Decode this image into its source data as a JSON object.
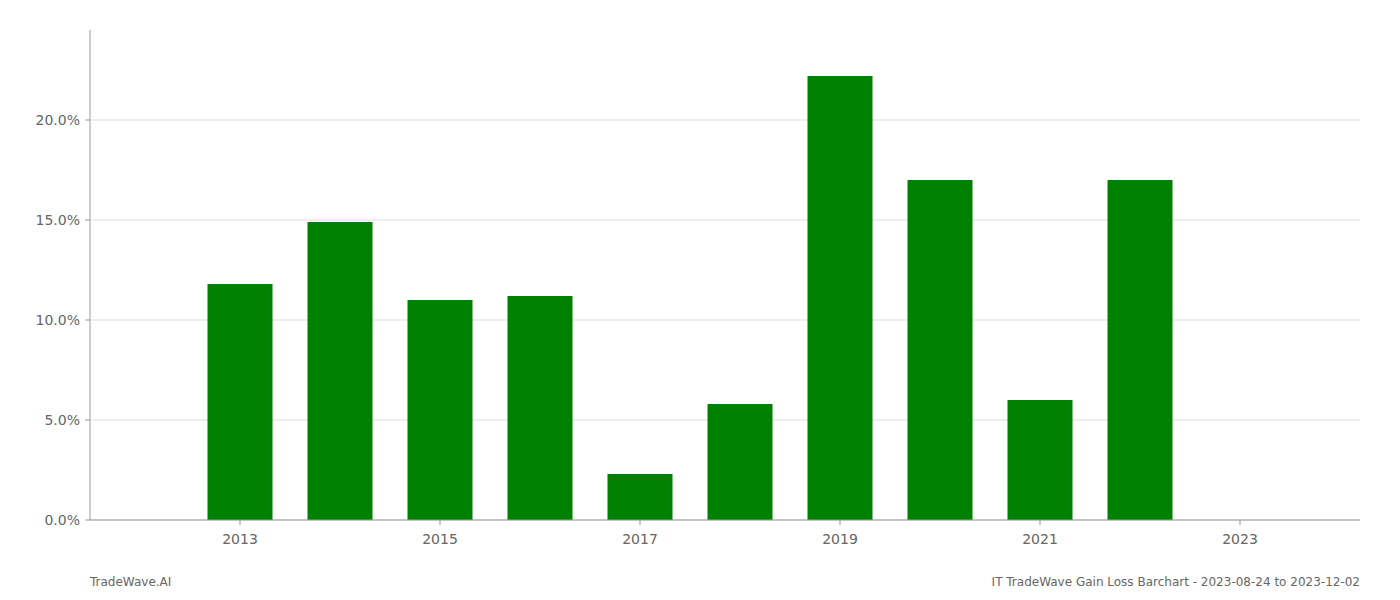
{
  "chart_data": {
    "type": "bar",
    "x": [
      2013,
      2014,
      2015,
      2016,
      2017,
      2018,
      2019,
      2020,
      2021,
      2022
    ],
    "values": [
      0.118,
      0.149,
      0.11,
      0.112,
      0.023,
      0.058,
      0.222,
      0.17,
      0.06,
      0.17
    ],
    "color": "#008000",
    "xlim": [
      2011.5,
      2024.2
    ],
    "xticks": [
      2013,
      2015,
      2017,
      2019,
      2021,
      2023
    ],
    "ylim": [
      0,
      0.245
    ],
    "yticks": [
      {
        "value": 0.0,
        "label": "0.0%"
      },
      {
        "value": 0.05,
        "label": "5.0%"
      },
      {
        "value": 0.1,
        "label": "10.0%"
      },
      {
        "value": 0.15,
        "label": "15.0%"
      },
      {
        "value": 0.2,
        "label": "20.0%"
      }
    ],
    "grid": true,
    "annotations": [
      "TradeWave.AI",
      "IT TradeWave Gain Loss Barchart - 2023-08-24 to 2023-12-02"
    ]
  }
}
